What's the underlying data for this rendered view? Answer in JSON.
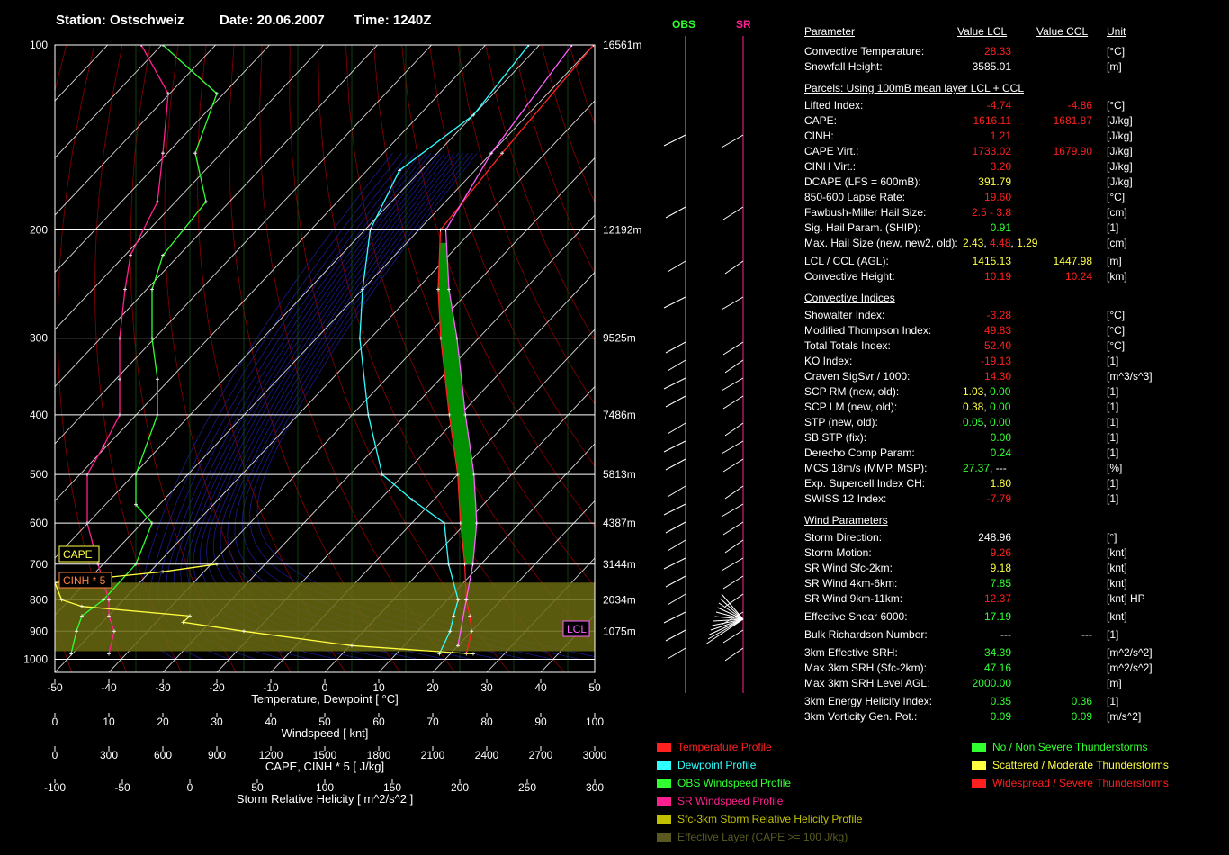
{
  "header": {
    "station": "Station: Ostschweiz",
    "date": "Date: 20.06.2007",
    "time": "Time: 1240Z"
  },
  "hodo_labels": {
    "obs": "OBS",
    "sr": "SR"
  },
  "chart_data": {
    "type": "line",
    "title": "",
    "pressure_ticks": [
      100,
      200,
      300,
      400,
      500,
      600,
      700,
      800,
      900,
      1000
    ],
    "height_labels": [
      {
        "p": 100,
        "h": "16561m"
      },
      {
        "p": 200,
        "h": "12192m"
      },
      {
        "p": 300,
        "h": "9525m"
      },
      {
        "p": 400,
        "h": "7486m"
      },
      {
        "p": 500,
        "h": "5813m"
      },
      {
        "p": 600,
        "h": "4387m"
      },
      {
        "p": 700,
        "h": "3144m"
      },
      {
        "p": 800,
        "h": "2034m"
      },
      {
        "p": 900,
        "h": "1075m"
      }
    ],
    "effective_layer": [
      970,
      750
    ],
    "lcl_p": 800,
    "axes": [
      {
        "label": "Temperature, Dewpoint  [ °C]",
        "ticks": [
          "-50",
          "-40",
          "-30",
          "-20",
          "-10",
          "0",
          "10",
          "20",
          "30",
          "40",
          "50"
        ]
      },
      {
        "label": "Windspeed  [ knt]",
        "ticks": [
          "0",
          "10",
          "20",
          "30",
          "40",
          "50",
          "60",
          "70",
          "80",
          "90",
          "100"
        ]
      },
      {
        "label": "CAPE, CINH * 5  [ J/kg]",
        "ticks": [
          "0",
          "300",
          "600",
          "900",
          "1200",
          "1500",
          "1800",
          "2100",
          "2400",
          "2700",
          "3000"
        ]
      },
      {
        "label": "Storm Relative Helicity  [ m^2/s^2 ]",
        "ticks": [
          "-100",
          "-50",
          "0",
          "50",
          "100",
          "150",
          "200",
          "250",
          "300"
        ]
      }
    ],
    "tags": {
      "cape": "CAPE",
      "cinh": "CINH * 5",
      "lcl": "LCL"
    },
    "series": [
      {
        "name": "Temperature Profile",
        "color": "#ff2020",
        "points": [
          [
            980,
            23
          ],
          [
            900,
            20
          ],
          [
            850,
            17
          ],
          [
            800,
            13.5
          ],
          [
            700,
            7
          ],
          [
            600,
            -1
          ],
          [
            500,
            -10
          ],
          [
            400,
            -22
          ],
          [
            300,
            -37
          ],
          [
            250,
            -46
          ],
          [
            200,
            -56
          ],
          [
            150,
            -58
          ],
          [
            100,
            -60
          ]
        ]
      },
      {
        "name": "Dewpoint Profile",
        "color": "#30ffff",
        "points": [
          [
            980,
            18
          ],
          [
            900,
            16
          ],
          [
            850,
            14
          ],
          [
            800,
            12
          ],
          [
            700,
            4
          ],
          [
            600,
            -4
          ],
          [
            550,
            -14
          ],
          [
            500,
            -24
          ],
          [
            400,
            -37
          ],
          [
            300,
            -52
          ],
          [
            250,
            -60
          ],
          [
            200,
            -69
          ],
          [
            160,
            -74
          ],
          [
            130,
            -70
          ],
          [
            100,
            -72
          ]
        ]
      },
      {
        "name": "Parcel",
        "color": "#ff60ff",
        "points": [
          [
            950,
            20
          ],
          [
            800,
            13.5
          ],
          [
            700,
            8.5
          ],
          [
            600,
            2
          ],
          [
            500,
            -7
          ],
          [
            400,
            -19
          ],
          [
            300,
            -34
          ],
          [
            250,
            -44
          ],
          [
            200,
            -55
          ],
          [
            150,
            -60
          ],
          [
            100,
            -64
          ]
        ]
      },
      {
        "name": "OBS Windspeed Profile",
        "color": "#30ff30",
        "axis": "wind",
        "points": [
          [
            980,
            3
          ],
          [
            900,
            4
          ],
          [
            850,
            5
          ],
          [
            800,
            9
          ],
          [
            700,
            15
          ],
          [
            600,
            18
          ],
          [
            560,
            15
          ],
          [
            500,
            15
          ],
          [
            400,
            19
          ],
          [
            350,
            19
          ],
          [
            300,
            18
          ],
          [
            250,
            18
          ],
          [
            220,
            20
          ],
          [
            180,
            28
          ],
          [
            150,
            26
          ],
          [
            120,
            30
          ],
          [
            100,
            20
          ]
        ]
      },
      {
        "name": "SR Windspeed Profile",
        "color": "#ff2090",
        "axis": "wind",
        "points": [
          [
            980,
            10
          ],
          [
            900,
            11
          ],
          [
            850,
            10
          ],
          [
            800,
            10
          ],
          [
            700,
            8
          ],
          [
            600,
            6
          ],
          [
            500,
            6
          ],
          [
            450,
            9
          ],
          [
            400,
            12
          ],
          [
            350,
            12
          ],
          [
            300,
            12
          ],
          [
            250,
            13
          ],
          [
            220,
            14
          ],
          [
            180,
            19
          ],
          [
            150,
            20
          ],
          [
            120,
            21
          ],
          [
            100,
            16
          ]
        ]
      },
      {
        "name": "Sfc-3km Storm Relative Helicity Profile",
        "color": "#ffff40",
        "axis": "srh",
        "points": [
          [
            980,
            210
          ],
          [
            950,
            120
          ],
          [
            900,
            40
          ],
          [
            870,
            -5
          ],
          [
            850,
            0
          ],
          [
            820,
            -80
          ],
          [
            800,
            -95
          ],
          [
            750,
            -100
          ],
          [
            720,
            -20
          ],
          [
            700,
            20
          ]
        ]
      }
    ]
  },
  "table": {
    "headers": {
      "parameter": "Parameter",
      "lcl": "Value LCL",
      "ccl": "Value CCL",
      "unit": "Unit"
    },
    "sections": [
      {
        "title": "",
        "rows": [
          {
            "label": "Convective Temperature:",
            "v1": "28.33",
            "c1": "red",
            "unit": "[°C]"
          },
          {
            "label": "Snowfall Height:",
            "v1": "3585.01",
            "c1": "wht",
            "unit": "[m]"
          }
        ]
      },
      {
        "title": "Parcels: Using 100mB mean layer LCL + CCL",
        "rows": [
          {
            "label": "Lifted Index:",
            "v1": "-4.74",
            "c1": "red",
            "v2": "-4.86",
            "c2": "red",
            "unit": "[°C]"
          },
          {
            "label": "CAPE:",
            "v1": "1616.11",
            "c1": "red",
            "v2": "1681.87",
            "c2": "red",
            "unit": "[J/kg]"
          },
          {
            "label": "CINH:",
            "v1": "1.21",
            "c1": "red",
            "unit": "[J/kg]"
          },
          {
            "label": "CAPE Virt.:",
            "v1": "1733.02",
            "c1": "red",
            "v2": "1679.90",
            "c2": "red",
            "unit": "[J/kg]"
          },
          {
            "label": "CINH Virt.:",
            "v1": "3.20",
            "c1": "red",
            "unit": "[J/kg]"
          },
          {
            "label": "DCAPE (LFS = 600mB):",
            "v1": "391.79",
            "c1": "yel",
            "unit": "[J/kg]"
          },
          {
            "label": "850-600 Lapse Rate:",
            "v1": "19.60",
            "c1": "red",
            "unit": "[°C]"
          },
          {
            "label": "Fawbush-Miller Hail Size:",
            "v1": "2.5 - 3.8",
            "c1": "red",
            "unit": "[cm]"
          },
          {
            "label": "Sig. Hail Param. (SHIP):",
            "v1": "0.91",
            "c1": "grn",
            "unit": "[1]"
          },
          {
            "label": "Max. Hail Size (new, new2, old):",
            "multi": [
              {
                "t": "2.43",
                "c": "yel"
              },
              {
                "t": ", ",
                "c": "wht"
              },
              {
                "t": "4.48",
                "c": "red"
              },
              {
                "t": ", ",
                "c": "wht"
              },
              {
                "t": "1.29",
                "c": "yel"
              }
            ],
            "unit": "[cm]"
          },
          {
            "label": "LCL / CCL (AGL):",
            "v1": "1415.13",
            "c1": "yel",
            "v2": "1447.98",
            "c2": "yel",
            "unit": "[m]",
            "gap": true
          },
          {
            "label": "Convective Height:",
            "v1": "10.19",
            "c1": "red",
            "v2": "10.24",
            "c2": "red",
            "unit": "[km]"
          }
        ]
      },
      {
        "title": "Convective Indices",
        "rows": [
          {
            "label": "Showalter Index:",
            "v1": "-3.28",
            "c1": "red",
            "unit": "[°C]"
          },
          {
            "label": "Modified Thompson Index:",
            "v1": "49.83",
            "c1": "red",
            "unit": "[°C]"
          },
          {
            "label": "Total Totals Index:",
            "v1": "52.40",
            "c1": "red",
            "unit": "[°C]"
          },
          {
            "label": "KO Index:",
            "v1": "-19.13",
            "c1": "red",
            "unit": "[1]"
          },
          {
            "label": "Craven SigSvr / 1000:",
            "v1": "14.30",
            "c1": "red",
            "unit": "[m^3/s^3]"
          },
          {
            "label": "SCP RM (new, old):",
            "multi": [
              {
                "t": "1.03",
                "c": "yel"
              },
              {
                "t": ",  ",
                "c": "wht"
              },
              {
                "t": "0.00",
                "c": "grn"
              }
            ],
            "unit": "[1]"
          },
          {
            "label": "SCP LM (new, old):",
            "multi": [
              {
                "t": "0.38",
                "c": "yel"
              },
              {
                "t": ",  ",
                "c": "wht"
              },
              {
                "t": "0.00",
                "c": "grn"
              }
            ],
            "unit": "[1]"
          },
          {
            "label": "STP (new, old):",
            "multi": [
              {
                "t": "0.05",
                "c": "grn"
              },
              {
                "t": ",  ",
                "c": "wht"
              },
              {
                "t": "0.00",
                "c": "grn"
              }
            ],
            "unit": "[1]"
          },
          {
            "label": "SB STP (fix):",
            "v1": "0.00",
            "c1": "grn",
            "unit": "[1]"
          },
          {
            "label": "Derecho Comp Param:",
            "v1": "0.24",
            "c1": "grn",
            "unit": "[1]"
          },
          {
            "label": "MCS 18m/s (MMP, MSP):",
            "multi": [
              {
                "t": "27.37",
                "c": "grn"
              },
              {
                "t": ",  ---",
                "c": "wht"
              }
            ],
            "unit": "[%]"
          },
          {
            "label": "Exp. Supercell Index CH:",
            "v1": "1.80",
            "c1": "yel",
            "unit": "[1]"
          },
          {
            "label": "SWISS 12 Index:",
            "v1": "-7.79",
            "c1": "red",
            "unit": "[1]"
          }
        ]
      },
      {
        "title": "Wind Parameters",
        "rows": [
          {
            "label": "Storm Direction:",
            "v1": "248.96",
            "c1": "wht",
            "unit": "[°]"
          },
          {
            "label": "Storm Motion:",
            "v1": "9.26",
            "c1": "red",
            "unit": "[knt]"
          },
          {
            "label": "SR Wind Sfc-2km:",
            "v1": "9.18",
            "c1": "yel",
            "unit": "[knt]"
          },
          {
            "label": "SR Wind 4km-6km:",
            "v1": "7.85",
            "c1": "grn",
            "unit": "[knt]"
          },
          {
            "label": "SR Wind 9km-11km:",
            "v1": "12.37",
            "c1": "red",
            "unit": "[knt] HP"
          },
          {
            "label": "Effective Shear 6000:",
            "v1": "17.19",
            "c1": "grn",
            "unit": "[knt]",
            "gap": true
          },
          {
            "label": "Bulk Richardson Number:",
            "v1": "---",
            "c1": "wht",
            "v2": "---",
            "c2": "wht",
            "unit": "[1]",
            "gap": true
          },
          {
            "label": "3km Effective SRH:",
            "v1": "34.39",
            "c1": "grn",
            "unit": "[m^2/s^2]",
            "gap": true
          },
          {
            "label": "Max 3km SRH (Sfc-2km):",
            "v1": "47.16",
            "c1": "grn",
            "unit": "[m^2/s^2]"
          },
          {
            "label": "Max 3km SRH Level AGL:",
            "v1": "2000.00",
            "c1": "grn",
            "unit": "[m]"
          },
          {
            "label": "3km Energy Helicity Index:",
            "v1": "0.35",
            "c1": "grn",
            "v2": "0.36",
            "c2": "grn",
            "unit": "[1]",
            "gap": true
          },
          {
            "label": "3km Vorticity Gen. Pot.:",
            "v1": "0.09",
            "c1": "grn",
            "v2": "0.09",
            "c2": "grn",
            "unit": "[m/s^2]"
          }
        ]
      }
    ]
  },
  "legend": {
    "left": [
      {
        "label": "Temperature Profile",
        "color": "#ff2020"
      },
      {
        "label": "Dewpoint Profile",
        "color": "#30ffff"
      },
      {
        "label": "OBS Windspeed Profile",
        "color": "#30ff30"
      },
      {
        "label": "SR Windspeed Profile",
        "color": "#ff2090"
      },
      {
        "label": "Sfc-3km Storm Relative Helicity Profile",
        "color": "#c0c000"
      },
      {
        "label": "Effective Layer (CAPE >= 100 J/kg)",
        "color": "#5a5a20"
      }
    ],
    "right": [
      {
        "label": "No / Non Severe Thunderstorms",
        "color": "#30ff30"
      },
      {
        "label": "Scattered / Moderate Thunderstorms",
        "color": "#ffff40"
      },
      {
        "label": "Widespread / Severe Thunderstorms",
        "color": "#ff2020"
      }
    ]
  }
}
